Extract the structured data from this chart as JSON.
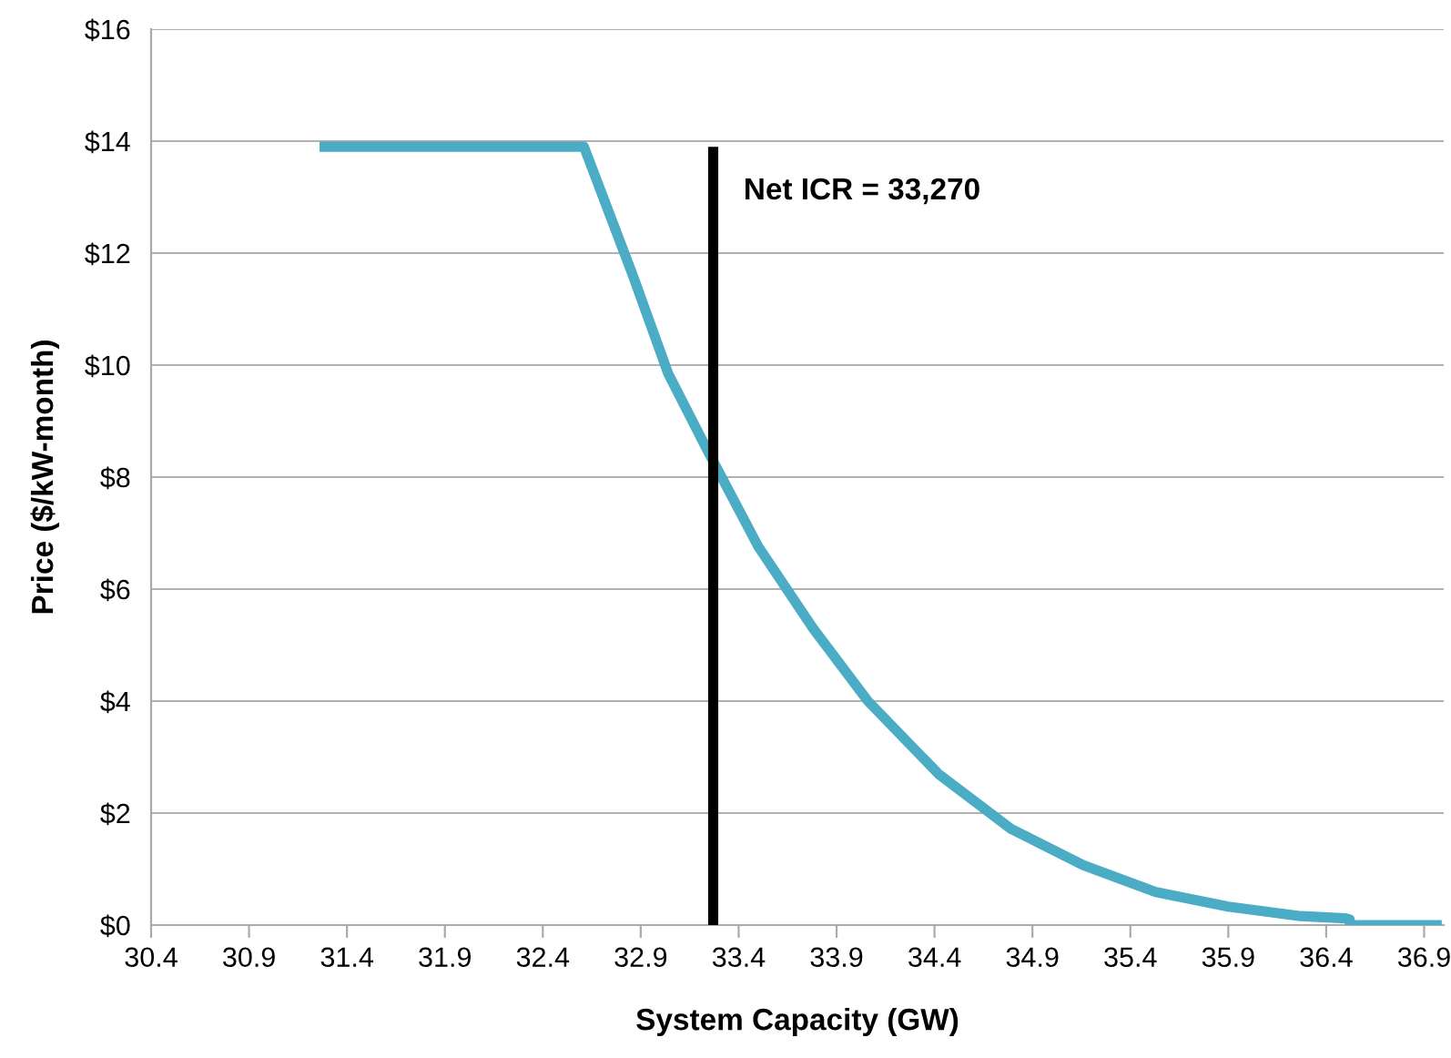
{
  "chart_data": {
    "type": "line",
    "xlabel": "System Capacity (GW)",
    "ylabel": "Price ($/kW-month)",
    "series": [
      {
        "color": "#4bacc6",
        "x": [
          31.26,
          32.61,
          32.86,
          33.04,
          33.23,
          33.5,
          33.78,
          34.06,
          34.42,
          34.79,
          35.16,
          35.53,
          35.9,
          36.27,
          36.5,
          36.52,
          36.52,
          36.99
        ],
        "values": [
          13.9,
          13.9,
          11.6,
          9.85,
          8.55,
          6.76,
          5.3,
          4.0,
          2.7,
          1.72,
          1.07,
          0.59,
          0.33,
          0.16,
          0.12,
          0.1,
          0.0,
          0.0
        ]
      },
      {
        "color": "#000000",
        "x": [
          33.27,
          33.27
        ],
        "values": [
          0,
          13.9
        ]
      }
    ],
    "annotations": [
      {
        "text": "Net ICR = 33,270",
        "x": 33.27,
        "y": 13.1
      }
    ],
    "xlim": [
      30.4,
      37.0
    ],
    "xticks": [
      30.4,
      30.9,
      31.4,
      31.9,
      32.4,
      32.9,
      33.4,
      33.9,
      34.4,
      34.9,
      35.4,
      35.9,
      36.4,
      36.9
    ],
    "ylim": [
      0,
      16
    ],
    "yticks": [
      {
        "value": 0,
        "label": "$0"
      },
      {
        "value": 2,
        "label": "$2"
      },
      {
        "value": 4,
        "label": "$4"
      },
      {
        "value": 6,
        "label": "$6"
      },
      {
        "value": 8,
        "label": "$8"
      },
      {
        "value": 10,
        "label": "$10"
      },
      {
        "value": 12,
        "label": "$12"
      },
      {
        "value": 14,
        "label": "$14"
      },
      {
        "value": 16,
        "label": "$16"
      }
    ],
    "grid": "y",
    "legend": false
  }
}
